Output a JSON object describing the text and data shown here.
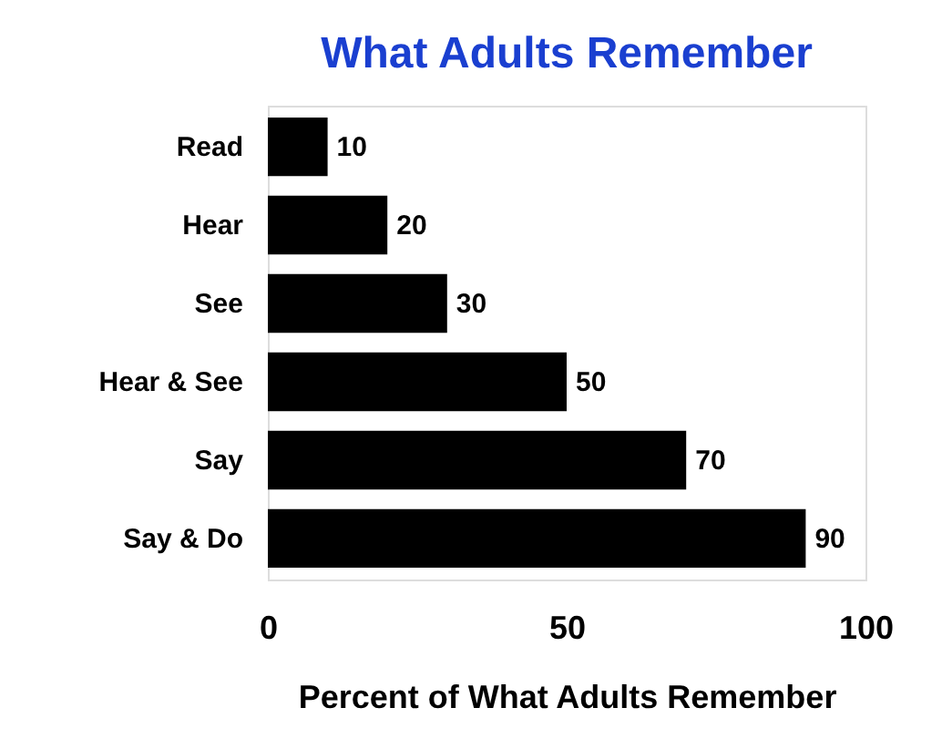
{
  "chart_data": {
    "type": "bar",
    "orientation": "horizontal",
    "title": "What Adults Remember",
    "xlabel": "Percent of What Adults Remember",
    "categories": [
      "Read",
      "Hear",
      "See",
      "Hear & See",
      "Say",
      "Say & Do"
    ],
    "values": [
      10,
      20,
      30,
      50,
      70,
      90
    ],
    "color": "#000000",
    "xlim": [
      0,
      100
    ],
    "xticks": [
      0,
      50,
      100
    ],
    "data_labels": true,
    "grid": false
  }
}
